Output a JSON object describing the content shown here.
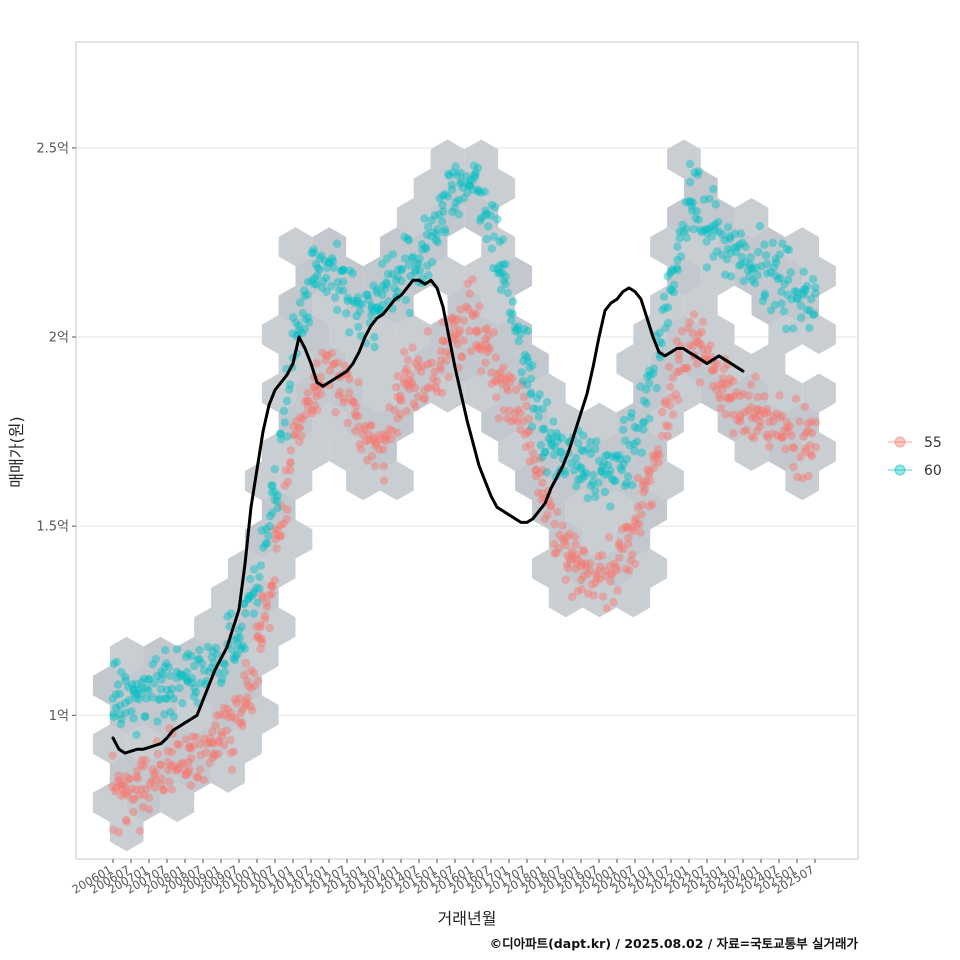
{
  "chart_data": {
    "type": "scatter",
    "xlabel": "거래년월",
    "ylabel": "매매가(원)",
    "caption": "©디아파트(dapt.kr) / 2025.08.02 / 자료=국토교통부 실거래가",
    "ylim": [
      0.62,
      2.78
    ],
    "y_ticks": [
      {
        "value": 1.0,
        "label": "1억"
      },
      {
        "value": 1.5,
        "label": "1.5억"
      },
      {
        "value": 2.0,
        "label": "2억"
      },
      {
        "value": 2.5,
        "label": "2.5억"
      }
    ],
    "x_tick_labels": [
      "200601",
      "200607",
      "200701",
      "200707",
      "200801",
      "200807",
      "200901",
      "200907",
      "201001",
      "201007",
      "201101",
      "201107",
      "201201",
      "201207",
      "201301",
      "201307",
      "201401",
      "201407",
      "201501",
      "201507",
      "201601",
      "201607",
      "201701",
      "201707",
      "201801",
      "201807",
      "201901",
      "201907",
      "202001",
      "202007",
      "202101",
      "202107",
      "202201",
      "202207",
      "202301",
      "202307",
      "202401",
      "202407",
      "202501",
      "202507"
    ],
    "legend": {
      "position": "right",
      "entries": [
        {
          "label": "55",
          "color": "#F8766D"
        },
        {
          "label": "60",
          "color": "#00BFC4"
        }
      ]
    },
    "grid": true,
    "series": [
      {
        "name": "55",
        "color": "#F8766D",
        "anchors": [
          [
            0,
            0.78
          ],
          [
            6,
            0.8
          ],
          [
            12,
            0.82
          ],
          [
            18,
            0.86
          ],
          [
            24,
            0.88
          ],
          [
            30,
            0.9
          ],
          [
            36,
            0.93
          ],
          [
            42,
            1.0
          ],
          [
            48,
            1.15
          ],
          [
            54,
            1.4
          ],
          [
            60,
            1.7
          ],
          [
            66,
            1.85
          ],
          [
            72,
            1.9
          ],
          [
            78,
            1.85
          ],
          [
            84,
            1.75
          ],
          [
            90,
            1.7
          ],
          [
            96,
            1.85
          ],
          [
            102,
            1.9
          ],
          [
            108,
            1.9
          ],
          [
            114,
            2.0
          ],
          [
            120,
            2.05
          ],
          [
            126,
            1.95
          ],
          [
            132,
            1.85
          ],
          [
            138,
            1.75
          ],
          [
            144,
            1.55
          ],
          [
            150,
            1.45
          ],
          [
            156,
            1.38
          ],
          [
            162,
            1.35
          ],
          [
            168,
            1.4
          ],
          [
            174,
            1.5
          ],
          [
            180,
            1.65
          ],
          [
            186,
            1.85
          ],
          [
            192,
            2.0
          ],
          [
            198,
            1.95
          ],
          [
            204,
            1.85
          ],
          [
            210,
            1.8
          ],
          [
            216,
            1.8
          ],
          [
            222,
            1.75
          ],
          [
            228,
            1.72
          ],
          [
            234,
            1.72
          ]
        ]
      },
      {
        "name": "60",
        "color": "#00BFC4",
        "anchors": [
          [
            0,
            1.05
          ],
          [
            6,
            1.05
          ],
          [
            12,
            1.06
          ],
          [
            18,
            1.08
          ],
          [
            24,
            1.1
          ],
          [
            30,
            1.12
          ],
          [
            36,
            1.15
          ],
          [
            42,
            1.2
          ],
          [
            48,
            1.35
          ],
          [
            54,
            1.6
          ],
          [
            60,
            1.95
          ],
          [
            66,
            2.15
          ],
          [
            72,
            2.2
          ],
          [
            78,
            2.1
          ],
          [
            84,
            2.05
          ],
          [
            90,
            2.1
          ],
          [
            96,
            2.15
          ],
          [
            102,
            2.2
          ],
          [
            108,
            2.3
          ],
          [
            114,
            2.4
          ],
          [
            120,
            2.42
          ],
          [
            126,
            2.3
          ],
          [
            132,
            2.1
          ],
          [
            138,
            1.9
          ],
          [
            144,
            1.75
          ],
          [
            150,
            1.68
          ],
          [
            156,
            1.66
          ],
          [
            162,
            1.64
          ],
          [
            168,
            1.65
          ],
          [
            174,
            1.72
          ],
          [
            180,
            1.9
          ],
          [
            186,
            2.15
          ],
          [
            192,
            2.35
          ],
          [
            198,
            2.3
          ],
          [
            204,
            2.25
          ],
          [
            210,
            2.2
          ],
          [
            216,
            2.18
          ],
          [
            222,
            2.15
          ],
          [
            228,
            2.12
          ],
          [
            234,
            2.1
          ]
        ]
      }
    ],
    "trend_line": {
      "color": "#000000",
      "points": [
        [
          0,
          0.94
        ],
        [
          2,
          0.91
        ],
        [
          4,
          0.9
        ],
        [
          6,
          0.905
        ],
        [
          8,
          0.91
        ],
        [
          10,
          0.91
        ],
        [
          12,
          0.915
        ],
        [
          14,
          0.92
        ],
        [
          16,
          0.925
        ],
        [
          18,
          0.94
        ],
        [
          20,
          0.96
        ],
        [
          22,
          0.97
        ],
        [
          24,
          0.98
        ],
        [
          26,
          0.99
        ],
        [
          28,
          1.0
        ],
        [
          30,
          1.04
        ],
        [
          32,
          1.08
        ],
        [
          34,
          1.12
        ],
        [
          36,
          1.15
        ],
        [
          38,
          1.18
        ],
        [
          40,
          1.23
        ],
        [
          42,
          1.28
        ],
        [
          44,
          1.4
        ],
        [
          46,
          1.55
        ],
        [
          48,
          1.65
        ],
        [
          50,
          1.75
        ],
        [
          52,
          1.82
        ],
        [
          54,
          1.86
        ],
        [
          56,
          1.88
        ],
        [
          58,
          1.9
        ],
        [
          60,
          1.93
        ],
        [
          62,
          2.0
        ],
        [
          64,
          1.97
        ],
        [
          66,
          1.93
        ],
        [
          68,
          1.88
        ],
        [
          70,
          1.87
        ],
        [
          72,
          1.88
        ],
        [
          74,
          1.89
        ],
        [
          76,
          1.9
        ],
        [
          78,
          1.91
        ],
        [
          80,
          1.93
        ],
        [
          82,
          1.96
        ],
        [
          84,
          2.0
        ],
        [
          86,
          2.03
        ],
        [
          88,
          2.05
        ],
        [
          90,
          2.06
        ],
        [
          92,
          2.08
        ],
        [
          94,
          2.1
        ],
        [
          96,
          2.11
        ],
        [
          98,
          2.13
        ],
        [
          100,
          2.15
        ],
        [
          102,
          2.15
        ],
        [
          104,
          2.14
        ],
        [
          106,
          2.15
        ],
        [
          108,
          2.13
        ],
        [
          110,
          2.08
        ],
        [
          112,
          2.0
        ],
        [
          114,
          1.92
        ],
        [
          116,
          1.85
        ],
        [
          118,
          1.78
        ],
        [
          120,
          1.72
        ],
        [
          122,
          1.66
        ],
        [
          124,
          1.62
        ],
        [
          126,
          1.58
        ],
        [
          128,
          1.55
        ],
        [
          130,
          1.54
        ],
        [
          132,
          1.53
        ],
        [
          134,
          1.52
        ],
        [
          136,
          1.51
        ],
        [
          138,
          1.51
        ],
        [
          140,
          1.52
        ],
        [
          142,
          1.54
        ],
        [
          144,
          1.56
        ],
        [
          146,
          1.6
        ],
        [
          148,
          1.63
        ],
        [
          150,
          1.66
        ],
        [
          152,
          1.7
        ],
        [
          154,
          1.75
        ],
        [
          156,
          1.8
        ],
        [
          158,
          1.85
        ],
        [
          160,
          1.92
        ],
        [
          162,
          2.0
        ],
        [
          164,
          2.07
        ],
        [
          166,
          2.09
        ],
        [
          168,
          2.1
        ],
        [
          170,
          2.12
        ],
        [
          172,
          2.13
        ],
        [
          174,
          2.12
        ],
        [
          176,
          2.1
        ],
        [
          178,
          2.05
        ],
        [
          180,
          2.0
        ],
        [
          182,
          1.96
        ],
        [
          184,
          1.95
        ],
        [
          186,
          1.96
        ],
        [
          188,
          1.97
        ],
        [
          190,
          1.97
        ],
        [
          192,
          1.96
        ],
        [
          194,
          1.95
        ],
        [
          196,
          1.94
        ],
        [
          198,
          1.93
        ],
        [
          200,
          1.94
        ],
        [
          202,
          1.95
        ],
        [
          204,
          1.94
        ],
        [
          206,
          1.93
        ],
        [
          208,
          1.92
        ],
        [
          210,
          1.91
        ]
      ]
    }
  }
}
